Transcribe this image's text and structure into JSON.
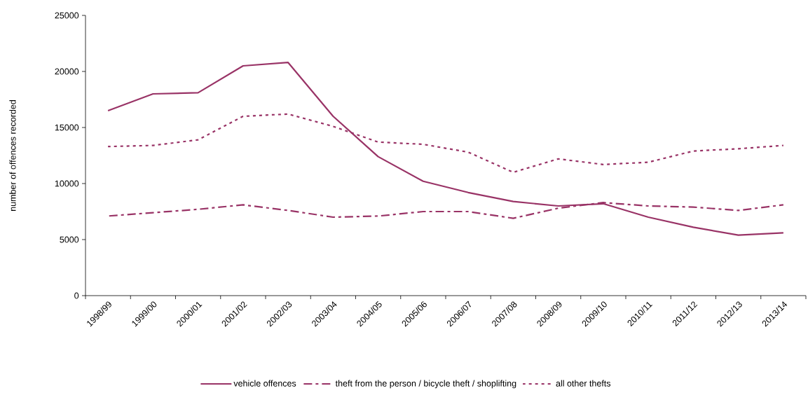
{
  "chart_data": {
    "type": "line",
    "ylabel": "number of offences recorded",
    "categories": [
      "1998/99",
      "1999/00",
      "2000/01",
      "2001/02",
      "2002/03",
      "2003/04",
      "2004/05",
      "2005/06",
      "2006/07",
      "2007/08",
      "2008/09",
      "2009/10",
      "2010/11",
      "2011/12",
      "2012/13",
      "2013/14"
    ],
    "series": [
      {
        "name": "vehicle offences",
        "color": "#993366",
        "line_style": "solid",
        "values": [
          16500,
          18000,
          18100,
          20500,
          20800,
          16000,
          12400,
          10200,
          9200,
          8400,
          8000,
          8200,
          7000,
          6100,
          5400,
          5600
        ]
      },
      {
        "name": "theft from the person / bicycle theft / shoplifting",
        "color": "#993366",
        "line_style": "dashed",
        "values": [
          7100,
          7400,
          7700,
          8100,
          7600,
          7000,
          7100,
          7500,
          7500,
          6900,
          7800,
          8300,
          8000,
          7900,
          7600,
          8100
        ]
      },
      {
        "name": "all other thefts",
        "color": "#993366",
        "line_style": "dotted",
        "values": [
          13300,
          13400,
          13900,
          16000,
          16200,
          15100,
          13700,
          13500,
          12800,
          11000,
          12200,
          11700,
          11900,
          12900,
          13100,
          13400
        ]
      }
    ],
    "ylim": [
      0,
      25000
    ],
    "yticks": [
      0,
      5000,
      10000,
      15000,
      20000,
      25000
    ],
    "legend": "bottom",
    "marker": "none",
    "grid": false
  }
}
